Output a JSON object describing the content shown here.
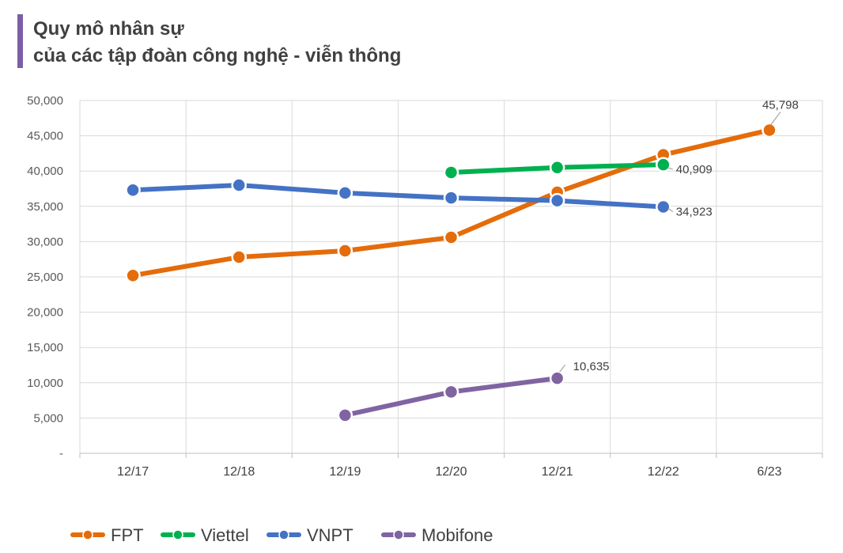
{
  "title_line1": "Quy mô nhân sự",
  "title_line2": "của các tập đoàn công nghệ - viễn thông",
  "chart_data": {
    "type": "line",
    "categories": [
      "12/17",
      "12/18",
      "12/19",
      "12/20",
      "12/21",
      "12/22",
      "6/23"
    ],
    "ylim": [
      0,
      50000
    ],
    "yticks": [
      0,
      5000,
      10000,
      15000,
      20000,
      25000,
      30000,
      35000,
      40000,
      45000,
      50000
    ],
    "ytick_labels": [
      "-",
      "5,000",
      "10,000",
      "15,000",
      "20,000",
      "25,000",
      "30,000",
      "35,000",
      "40,000",
      "45,000",
      "50,000"
    ],
    "grid": true,
    "legend_position": "bottom-left",
    "series": [
      {
        "name": "FPT",
        "color": "#e46c0a",
        "values": [
          25200,
          27800,
          28700,
          30600,
          37000,
          42300,
          45798
        ]
      },
      {
        "name": "Viettel",
        "color": "#00b050",
        "values": [
          null,
          null,
          null,
          39800,
          40500,
          40909,
          null
        ]
      },
      {
        "name": "VNPT",
        "color": "#4472c4",
        "values": [
          37300,
          38000,
          36900,
          36200,
          35800,
          34923,
          null
        ]
      },
      {
        "name": "Mobifone",
        "color": "#8064a2",
        "values": [
          null,
          null,
          5400,
          8700,
          10635,
          null,
          null
        ]
      }
    ],
    "annotations": [
      {
        "series": 0,
        "index": 6,
        "text": "45,798"
      },
      {
        "series": 1,
        "index": 5,
        "text": "40,909"
      },
      {
        "series": 2,
        "index": 5,
        "text": "34,923"
      },
      {
        "series": 3,
        "index": 4,
        "text": "10,635"
      }
    ]
  }
}
